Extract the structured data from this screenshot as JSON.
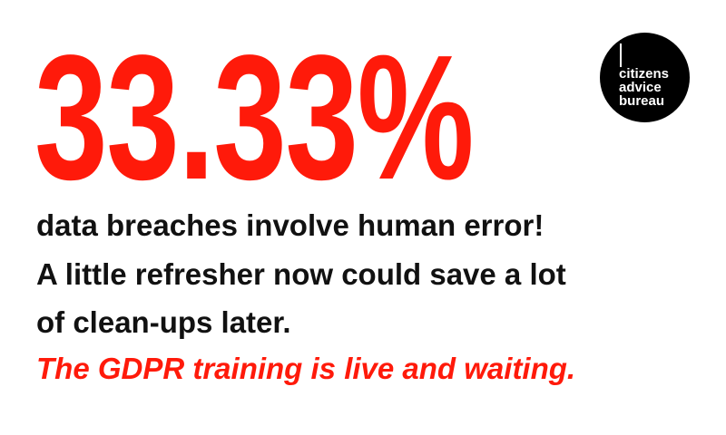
{
  "headline": {
    "stat": "33.33%",
    "accent_color": "#ff1a0a"
  },
  "body": {
    "line1": "data breaches involve human error!",
    "line2": "A little refresher now could save a lot",
    "line3": "of clean-ups later.",
    "cta": "The GDPR training is live and waiting."
  },
  "logo": {
    "line1": "citizens",
    "line2": "advice",
    "line3": "bureau"
  }
}
